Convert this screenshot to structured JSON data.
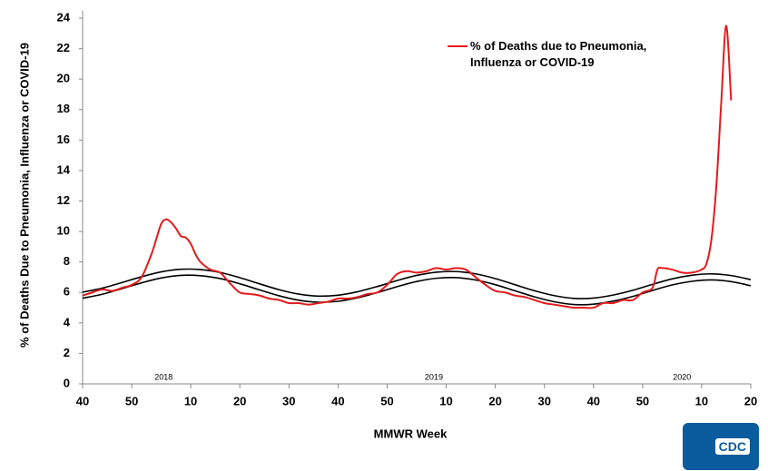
{
  "chart_data": {
    "type": "line",
    "y_label": "% of Deaths Due to Pneumonia, Influenza or  COVID-19",
    "x_label": "MMWR Week",
    "xlim": [
      0,
      136
    ],
    "ylim": [
      0,
      24.5
    ],
    "xticks": [
      {
        "value": 0,
        "label": "40"
      },
      {
        "value": 10,
        "label": "50"
      },
      {
        "value": 22,
        "label": "10"
      },
      {
        "value": 32,
        "label": "20"
      },
      {
        "value": 42,
        "label": "30"
      },
      {
        "value": 52,
        "label": "40"
      },
      {
        "value": 62,
        "label": "50"
      },
      {
        "value": 74,
        "label": "10"
      },
      {
        "value": 84,
        "label": "20"
      },
      {
        "value": 94,
        "label": "30"
      },
      {
        "value": 104,
        "label": "40"
      },
      {
        "value": 114,
        "label": "50"
      },
      {
        "value": 126,
        "label": "10"
      },
      {
        "value": 136,
        "label": "20"
      }
    ],
    "yticks": [
      0,
      2,
      4,
      6,
      8,
      10,
      12,
      14,
      16,
      18,
      20,
      22,
      24
    ],
    "annotations": [
      {
        "text": "2018",
        "x": 16.5
      },
      {
        "text": "2019",
        "x": 71.5
      },
      {
        "text": "2020",
        "x": 122
      }
    ],
    "series": [
      {
        "name": "% of Deaths due to Pneumonia, Influenza or COVID-19",
        "color": "#e31a1c",
        "x": [
          0,
          2,
          4,
          6,
          8,
          10,
          12,
          14,
          15,
          16,
          17,
          18,
          19,
          20,
          21,
          22,
          23,
          24,
          26,
          28,
          30,
          32,
          34,
          36,
          38,
          40,
          42,
          44,
          46,
          48,
          50,
          52,
          54,
          56,
          58,
          60,
          62,
          64,
          66,
          68,
          70,
          72,
          74,
          76,
          78,
          80,
          82,
          84,
          86,
          88,
          90,
          92,
          94,
          96,
          98,
          100,
          102,
          104,
          106,
          108,
          110,
          112,
          114,
          116,
          117,
          118,
          120,
          122,
          124,
          126,
          127,
          128,
          129,
          130,
          131,
          132
        ],
        "values": [
          5.8,
          6.0,
          6.2,
          6.1,
          6.3,
          6.5,
          7.0,
          8.5,
          9.5,
          10.5,
          10.8,
          10.6,
          10.2,
          9.7,
          9.6,
          9.2,
          8.5,
          8.0,
          7.5,
          7.3,
          6.6,
          6.0,
          5.9,
          5.8,
          5.6,
          5.5,
          5.3,
          5.3,
          5.2,
          5.3,
          5.4,
          5.6,
          5.6,
          5.7,
          5.9,
          6.0,
          6.5,
          7.2,
          7.4,
          7.3,
          7.4,
          7.6,
          7.5,
          7.6,
          7.5,
          7.0,
          6.5,
          6.1,
          6.0,
          5.8,
          5.7,
          5.5,
          5.3,
          5.2,
          5.1,
          5.0,
          5.0,
          5.0,
          5.3,
          5.3,
          5.5,
          5.5,
          6.0,
          6.3,
          7.5,
          7.6,
          7.5,
          7.3,
          7.3,
          7.5,
          7.9,
          9.5,
          13,
          18.5,
          23.5,
          18.6
        ]
      },
      {
        "color": "#000000",
        "x": [
          0,
          4,
          8,
          12,
          16,
          20,
          24,
          28,
          32,
          36,
          40,
          44,
          48,
          52,
          56,
          60,
          64,
          68,
          72,
          76,
          80,
          84,
          88,
          92,
          96,
          100,
          104,
          108,
          112,
          116,
          120,
          124,
          128,
          132,
          136
        ],
        "values": [
          6.02,
          6.28,
          6.65,
          7.03,
          7.35,
          7.52,
          7.5,
          7.31,
          6.97,
          6.57,
          6.18,
          5.89,
          5.76,
          5.82,
          6.05,
          6.39,
          6.78,
          7.12,
          7.33,
          7.37,
          7.22,
          6.91,
          6.51,
          6.11,
          5.79,
          5.61,
          5.63,
          5.83,
          6.14,
          6.53,
          6.89,
          7.13,
          7.22,
          7.11,
          6.84
        ]
      },
      {
        "color": "#000000",
        "x": [
          0,
          4,
          8,
          12,
          16,
          20,
          24,
          28,
          32,
          36,
          40,
          44,
          48,
          52,
          56,
          60,
          64,
          68,
          72,
          76,
          80,
          84,
          88,
          92,
          96,
          100,
          104,
          108,
          112,
          116,
          120,
          124,
          128,
          132,
          136
        ],
        "values": [
          5.62,
          5.88,
          6.25,
          6.63,
          6.95,
          7.12,
          7.1,
          6.91,
          6.57,
          6.17,
          5.78,
          5.49,
          5.36,
          5.42,
          5.65,
          5.99,
          6.38,
          6.72,
          6.93,
          6.97,
          6.82,
          6.51,
          6.11,
          5.71,
          5.39,
          5.21,
          5.23,
          5.43,
          5.74,
          6.13,
          6.49,
          6.73,
          6.82,
          6.71,
          6.44
        ]
      }
    ],
    "legend_series": 0,
    "logo_text": "CDC"
  }
}
